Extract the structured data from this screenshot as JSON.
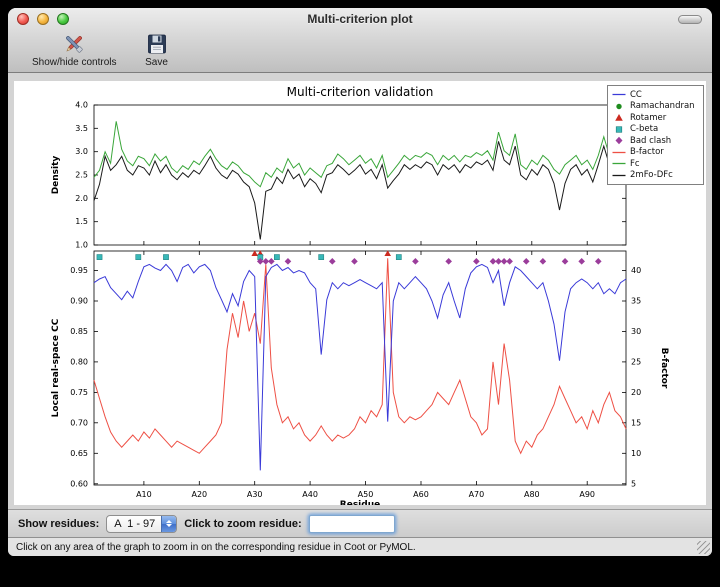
{
  "window": {
    "title": "Multi-criterion plot"
  },
  "toolbar": {
    "show_hide_label": "Show/hide controls",
    "save_label": "Save"
  },
  "legend": {
    "items": [
      {
        "label": "CC",
        "marker": "line",
        "color": "#3a3ad8"
      },
      {
        "label": "Ramachandran",
        "marker": "circle",
        "color": "#1e8c1e"
      },
      {
        "label": "Rotamer",
        "marker": "triangle",
        "color": "#cc2a20"
      },
      {
        "label": "C-beta",
        "marker": "square",
        "color": "#38b8b8"
      },
      {
        "label": "Bad clash",
        "marker": "diamond",
        "color": "#9b3d9b"
      },
      {
        "label": "B-factor",
        "marker": "line",
        "color": "#ee5045"
      },
      {
        "label": "Fc",
        "marker": "line",
        "color": "#3aa63a"
      },
      {
        "label": "2mFo-DFc",
        "marker": "line",
        "color": "#1a1a1a"
      }
    ]
  },
  "chart_data": [
    {
      "type": "line",
      "title": "Multi-criterion validation",
      "ylabel": "Density",
      "ylim": [
        1.0,
        4.0
      ],
      "yticks": [
        1.0,
        1.5,
        2.0,
        2.5,
        3.0,
        3.5,
        4.0
      ],
      "x_range": [
        1,
        97
      ],
      "series": [
        {
          "name": "Fc",
          "color": "#3aa63a",
          "values": [
            2.45,
            2.6,
            3.0,
            2.75,
            3.65,
            3.05,
            2.8,
            2.7,
            2.9,
            2.85,
            2.7,
            2.95,
            2.8,
            2.9,
            2.65,
            2.55,
            2.7,
            2.62,
            2.8,
            2.72,
            2.9,
            3.05,
            2.85,
            2.7,
            2.62,
            2.78,
            2.7,
            2.55,
            2.48,
            2.35,
            2.25,
            2.55,
            2.45,
            2.65,
            2.55,
            2.85,
            2.65,
            2.75,
            2.5,
            2.65,
            2.55,
            2.45,
            2.7,
            2.75,
            2.95,
            2.85,
            2.72,
            2.82,
            2.92,
            2.75,
            2.85,
            2.65,
            2.92,
            2.45,
            2.6,
            2.75,
            2.92,
            2.82,
            2.92,
            2.88,
            2.98,
            2.92,
            2.72,
            2.92,
            2.82,
            2.92,
            2.78,
            2.92,
            2.88,
            2.98,
            2.92,
            3.02,
            2.82,
            3.42,
            3.02,
            2.92,
            3.38,
            2.72,
            2.62,
            2.82,
            2.72,
            2.92,
            2.82,
            2.62,
            2.52,
            2.72,
            2.82,
            2.92,
            2.72,
            2.82,
            2.62,
            2.92,
            3.32,
            2.92,
            3.02,
            3.38,
            3.42
          ]
        },
        {
          "name": "2mFo-DFc",
          "color": "#1a1a1a",
          "values": [
            1.95,
            2.3,
            2.9,
            2.6,
            2.72,
            2.9,
            2.6,
            2.5,
            2.7,
            2.65,
            2.5,
            2.8,
            2.55,
            2.72,
            2.5,
            2.4,
            2.55,
            2.45,
            2.6,
            2.52,
            2.7,
            2.9,
            2.65,
            2.5,
            2.42,
            2.6,
            2.52,
            2.35,
            2.25,
            1.9,
            1.12,
            2.15,
            2.2,
            2.45,
            2.32,
            2.62,
            2.42,
            2.52,
            2.25,
            2.42,
            2.32,
            2.12,
            2.5,
            2.55,
            2.72,
            2.62,
            2.5,
            2.6,
            2.72,
            2.52,
            2.62,
            2.42,
            2.72,
            2.22,
            2.38,
            2.52,
            2.72,
            2.62,
            2.72,
            2.65,
            2.78,
            2.72,
            2.5,
            2.72,
            2.62,
            2.72,
            2.55,
            2.72,
            2.65,
            2.78,
            2.72,
            2.82,
            2.6,
            3.22,
            2.82,
            2.72,
            3.12,
            2.5,
            2.4,
            2.62,
            2.5,
            2.72,
            2.62,
            2.32,
            1.75,
            2.32,
            2.62,
            2.72,
            2.5,
            2.62,
            2.35,
            2.72,
            3.12,
            2.72,
            2.82,
            3.18,
            3.22
          ]
        }
      ]
    },
    {
      "type": "line",
      "xlabel": "Residue",
      "ylabel_left": "Local real-space CC",
      "ylabel_right": "B-factor",
      "ylim_left": [
        0.598,
        0.982
      ],
      "yticks_left": [
        0.6,
        0.65,
        0.7,
        0.75,
        0.8,
        0.85,
        0.9,
        0.95
      ],
      "yticks_right": [
        5,
        10,
        15,
        20,
        25,
        30,
        35,
        40
      ],
      "xticks": [
        "A10",
        "A20",
        "A30",
        "A40",
        "A50",
        "A60",
        "A70",
        "A80",
        "A90"
      ],
      "x_range": [
        1,
        97
      ],
      "series": [
        {
          "name": "CC",
          "axis": "left",
          "color": "#3a3ad8",
          "values": [
            0.93,
            0.936,
            0.94,
            0.922,
            0.912,
            0.902,
            0.916,
            0.905,
            0.932,
            0.956,
            0.96,
            0.954,
            0.95,
            0.96,
            0.95,
            0.932,
            0.955,
            0.96,
            0.946,
            0.956,
            0.96,
            0.95,
            0.922,
            0.902,
            0.882,
            0.912,
            0.892,
            0.932,
            0.95,
            0.94,
            0.622,
            0.94,
            0.955,
            0.96,
            0.95,
            0.955,
            0.946,
            0.95,
            0.946,
            0.93,
            0.92,
            0.812,
            0.902,
            0.93,
            0.92,
            0.93,
            0.925,
            0.93,
            0.935,
            0.93,
            0.925,
            0.92,
            0.93,
            0.702,
            0.9,
            0.93,
            0.92,
            0.93,
            0.94,
            0.93,
            0.92,
            0.9,
            0.872,
            0.91,
            0.93,
            0.9,
            0.872,
            0.92,
            0.946,
            0.956,
            0.96,
            0.955,
            0.93,
            0.95,
            0.892,
            0.93,
            0.956,
            0.95,
            0.94,
            0.93,
            0.92,
            0.93,
            0.9,
            0.862,
            0.802,
            0.882,
            0.92,
            0.93,
            0.936,
            0.93,
            0.92,
            0.93,
            0.912,
            0.92,
            0.912,
            0.93,
            0.936
          ]
        },
        {
          "name": "B-factor",
          "axis": "right",
          "color": "#ee5045",
          "values": [
            22,
            19,
            16,
            13.5,
            12,
            11,
            12,
            13,
            12,
            13.5,
            12.5,
            14,
            13,
            12,
            11,
            12,
            11.5,
            11,
            10.5,
            10,
            11,
            12,
            13,
            15,
            27,
            33,
            29,
            35,
            30,
            33,
            28,
            41,
            24,
            18,
            15,
            16,
            14,
            15,
            13,
            12,
            13,
            14.5,
            13,
            12,
            13,
            12.5,
            13,
            14,
            16,
            15,
            17,
            16,
            18,
            42,
            20,
            16,
            15,
            16,
            15.5,
            16,
            17,
            18,
            20,
            19,
            18,
            20,
            22,
            19,
            16,
            15,
            13,
            14,
            25,
            18,
            28,
            22,
            12,
            10,
            12,
            11,
            13,
            14,
            16,
            18,
            21,
            19,
            17,
            15,
            16,
            14,
            17,
            15,
            18,
            20,
            17,
            16,
            14
          ]
        }
      ],
      "markers": [
        {
          "name": "Rotamer",
          "shape": "triangle",
          "color": "#cc2a20",
          "y": 0.978,
          "residues": [
            30,
            31,
            54
          ]
        },
        {
          "name": "C-beta",
          "shape": "square",
          "color": "#38b8b8",
          "y": 0.972,
          "residues": [
            2,
            9,
            14,
            31,
            34,
            42,
            56
          ]
        },
        {
          "name": "Bad clash",
          "shape": "diamond",
          "color": "#9b3d9b",
          "y": 0.965,
          "residues": [
            31,
            32,
            33,
            36,
            44,
            48,
            59,
            65,
            70,
            73,
            74,
            75,
            76,
            79,
            82,
            86,
            89,
            92
          ]
        }
      ]
    }
  ],
  "controls": {
    "show_residues_label": "Show residues:",
    "residue_range_value": "A  1 - 97",
    "zoom_label": "Click to zoom residue:",
    "zoom_value": ""
  },
  "status": {
    "message": "Click on any area of the graph to zoom in on the corresponding residue in Coot or PyMOL."
  }
}
